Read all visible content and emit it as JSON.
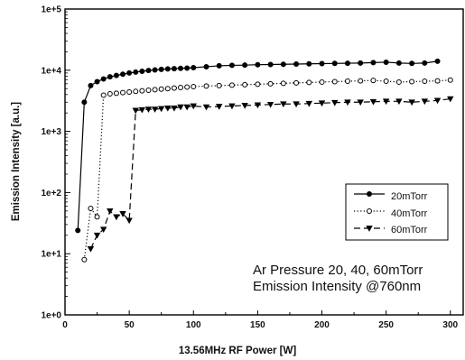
{
  "chart_data": {
    "type": "line",
    "xlabel": "13.56MHz RF Power [W]",
    "ylabel": "Emission Intensity [a.u.]",
    "xlim": [
      0,
      310
    ],
    "ylim": [
      1,
      100000
    ],
    "y_scale": "log",
    "x_ticks": [
      0,
      50,
      100,
      150,
      200,
      250,
      300
    ],
    "y_ticks": [
      1,
      10,
      100,
      1000,
      10000,
      100000
    ],
    "y_tick_labels": [
      "1e+0",
      "1e+1",
      "1e+2",
      "1e+3",
      "1e+4",
      "1e+5"
    ],
    "grid": false,
    "legend_position": "right",
    "annotations": [
      "Ar Pressure 20, 40, 60mTorr",
      "Emission Intensity @760nm"
    ],
    "series": [
      {
        "name": "20mTorr",
        "color": "#000000",
        "line_style": "solid",
        "marker": "filled-circle",
        "x": [
          10,
          15,
          20,
          25,
          30,
          35,
          40,
          45,
          50,
          55,
          60,
          65,
          70,
          75,
          80,
          85,
          90,
          95,
          100,
          110,
          120,
          130,
          140,
          150,
          160,
          170,
          180,
          190,
          200,
          210,
          220,
          230,
          240,
          250,
          260,
          270,
          280,
          290
        ],
        "y": [
          24,
          3000,
          5600,
          6500,
          7200,
          7800,
          8200,
          8600,
          9000,
          9300,
          9600,
          9900,
          10100,
          10300,
          10500,
          10600,
          10700,
          10800,
          11000,
          11400,
          11800,
          12000,
          12100,
          12300,
          12400,
          12500,
          12600,
          12700,
          12800,
          12900,
          13000,
          13100,
          13300,
          13500,
          13100,
          12900,
          13100,
          14000
        ]
      },
      {
        "name": "40mTorr",
        "color": "#000000",
        "line_style": "dotted",
        "marker": "open-circle",
        "x": [
          15,
          20,
          25,
          30,
          35,
          40,
          45,
          50,
          55,
          60,
          65,
          70,
          75,
          80,
          85,
          90,
          95,
          100,
          110,
          120,
          130,
          140,
          150,
          160,
          170,
          180,
          190,
          200,
          210,
          220,
          230,
          240,
          250,
          260,
          270,
          280,
          290,
          300
        ],
        "y": [
          8,
          55,
          40,
          3900,
          4100,
          4200,
          4300,
          4400,
          4500,
          4600,
          4700,
          4800,
          4900,
          5000,
          5100,
          5200,
          5300,
          5400,
          5500,
          5600,
          5700,
          5800,
          5900,
          6000,
          6100,
          6200,
          6300,
          6400,
          6500,
          6600,
          6700,
          6800,
          6600,
          6400,
          6500,
          6600,
          6700,
          6900
        ]
      },
      {
        "name": "60mTorr",
        "color": "#000000",
        "line_style": "dashed",
        "marker": "filled-triangle-down",
        "x": [
          20,
          25,
          30,
          35,
          40,
          45,
          50,
          55,
          60,
          65,
          70,
          75,
          80,
          85,
          90,
          95,
          100,
          110,
          120,
          130,
          140,
          150,
          160,
          170,
          180,
          190,
          200,
          210,
          220,
          230,
          240,
          250,
          260,
          270,
          280,
          290,
          300
        ],
        "y": [
          12,
          20,
          25,
          50,
          40,
          45,
          35,
          2200,
          2250,
          2300,
          2300,
          2350,
          2400,
          2400,
          2500,
          2500,
          2600,
          2500,
          2550,
          2600,
          2650,
          2700,
          2750,
          2800,
          2800,
          2850,
          2900,
          2950,
          3000,
          3000,
          3050,
          3100,
          3100,
          3000,
          3100,
          3200,
          3400
        ]
      }
    ]
  }
}
